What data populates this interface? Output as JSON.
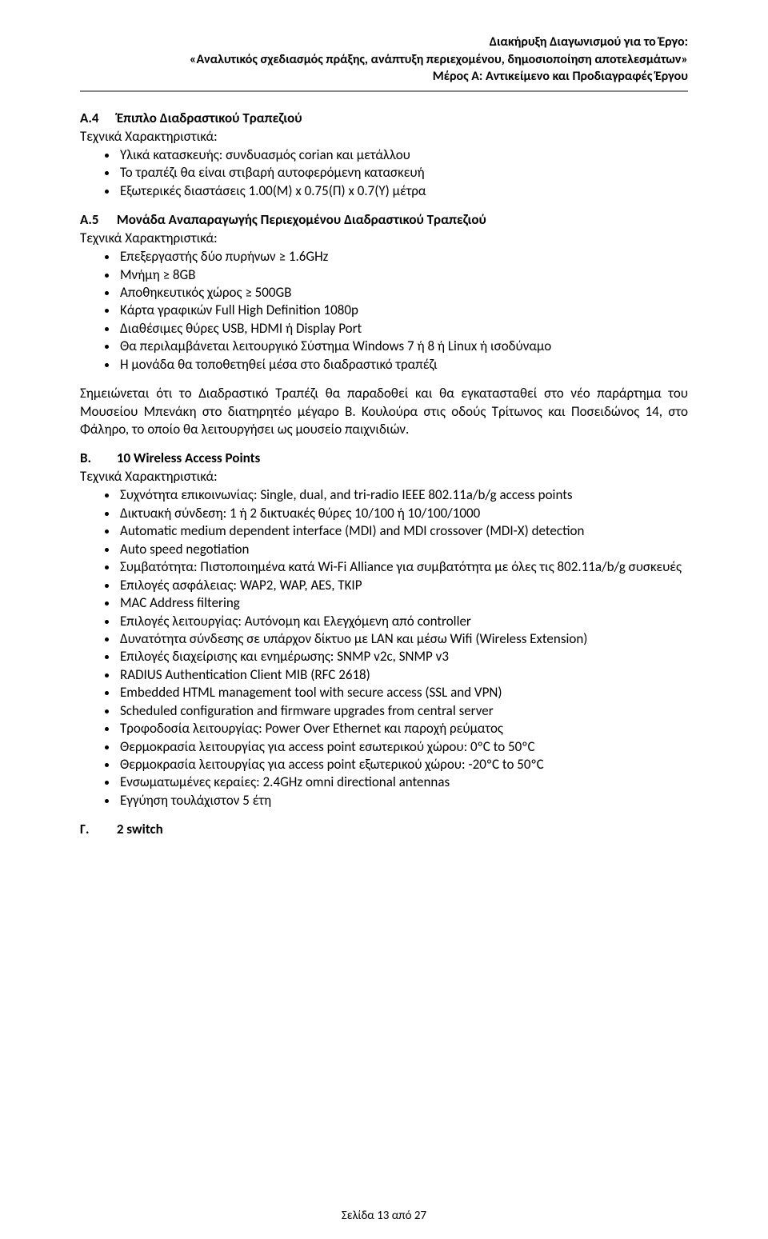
{
  "header": {
    "line1": "Διακήρυξη Διαγωνισμού για το Έργο:",
    "line2": "«Αναλυτικός σχεδιασμός πράξης, ανάπτυξη περιεχομένου, δημοσιοποίηση αποτελεσμάτων»",
    "line3": "Μέρος Α: Αντικείμενο και Προδιαγραφές Έργου"
  },
  "sections": {
    "a4": {
      "num": "Α.4",
      "title": "Έπιπλο Διαδραστικού Τραπεζιού",
      "sub": "Τεχνικά Χαρακτηριστικά:",
      "items": [
        "Υλικά κατασκευής: συνδυασμός corian και μετάλλου",
        "Το τραπέζι θα είναι στιβαρή αυτοφερόμενη κατασκευή",
        "Εξωτερικές διαστάσεις 1.00(Μ) x 0.75(Π) x 0.7(Υ) μέτρα"
      ]
    },
    "a5": {
      "num": "Α.5",
      "title": "Μονάδα Αναπαραγωγής Περιεχομένου Διαδραστικού Τραπεζιού",
      "sub": "Τεχνικά Χαρακτηριστικά:",
      "items": [
        "Επεξεργαστής δύο πυρήνων ≥ 1.6GHz",
        "Μνήμη ≥ 8GB",
        "Αποθηκευτικός χώρος ≥ 500GB",
        "Κάρτα γραφικών Full High Definition 1080p",
        "Διαθέσιμες θύρες USB, HDMI ή Display Port",
        "Θα περιλαμβάνεται λειτουργικό Σύστημα Windows 7 ή 8 ή Linux ή ισοδύναμο",
        "Η μονάδα θα τοποθετηθεί μέσα στο διαδραστικό τραπέζι"
      ]
    },
    "note": "Σημειώνεται ότι το Διαδραστικό Τραπέζι θα παραδοθεί και θα εγκατασταθεί στο νέο παράρτημα του Μουσείου Μπενάκη στο διατηρητέο μέγαρο Β. Κουλούρα στις οδούς Τρίτωνος και Ποσειδώνος 14, στο Φάληρο, το οποίο θα λειτουργήσει ως μουσείο παιχνιδιών.",
    "b": {
      "num": "Β.",
      "title": "10 Wireless Access Points",
      "sub": "Τεχνικά Χαρακτηριστικά:",
      "items": [
        "Συχνότητα επικοινωνίας: Single, dual, and tri-radio IEEE 802.11a/b/g access points",
        "Δικτυακή σύνδεση: 1 ή 2 δικτυακές θύρες 10/100 ή 10/100/1000",
        "Automatic medium dependent interface (MDI) and MDI crossover (MDI-X) detection",
        "Auto speed negotiation",
        "Συμβατότητα: Πιστοποιημένα κατά Wi-Fi Alliance για συμβατότητα με όλες τις 802.11a/b/g συσκευές",
        "Επιλογές ασφάλειας: WAP2, WAP, AES, TKIP",
        "MAC Address filtering",
        "Επιλογές λειτουργίας: Αυτόνομη και  Ελεγχόμενη από controller",
        "Δυνατότητα σύνδεσης σε υπάρχον δίκτυο με LAN και μέσω Wifi (Wireless Extension)",
        "Επιλογές διαχείρισης και ενημέρωσης: SNMP v2c, SNMP v3",
        "RADIUS Authentication Client MIB (RFC 2618)",
        "Embedded HTML management tool with secure access (SSL and VPN)",
        "Scheduled configuration and firmware upgrades from central server",
        "Τροφοδοσία λειτουργίας: Power Over Ethernet και παροχή ρεύματος",
        "Θερμοκρασία λειτουργίας για access point εσωτερικού χώρου: 0ºC to 50ºC",
        "Θερμοκρασία λειτουργίας για access point εξωτερικού χώρου: -20ºC to 50ºC",
        "Ενσωματωμένες κεραίες: 2.4GHz omni directional antennas",
        "Εγγύηση τουλάχιστον 5 έτη"
      ]
    },
    "g": {
      "num": "Γ.",
      "title": "2 switch"
    }
  },
  "footer": "Σελίδα 13 από 27"
}
